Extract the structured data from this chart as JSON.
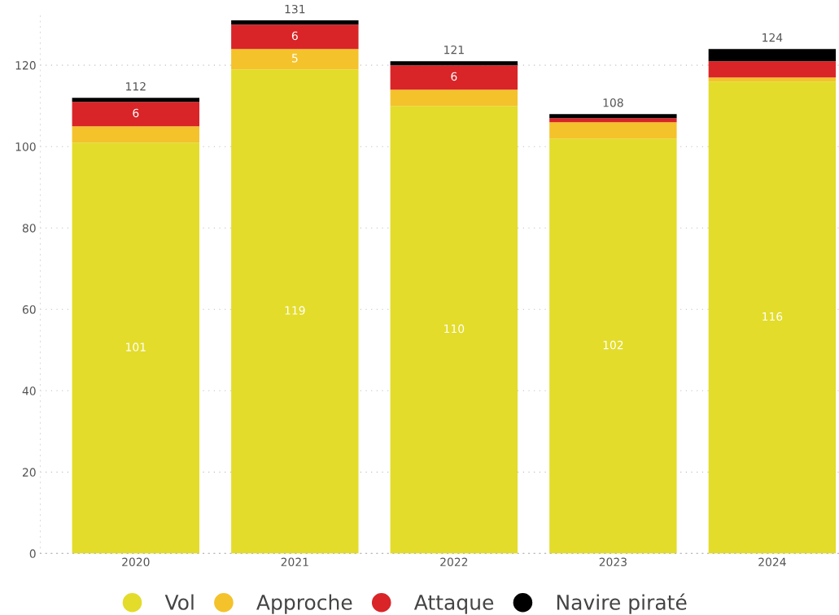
{
  "chart_data": {
    "type": "bar",
    "stacked": true,
    "categories": [
      "2020",
      "2021",
      "2022",
      "2023",
      "2024"
    ],
    "series": [
      {
        "name": "Vol",
        "color": "#e3dc2b",
        "values": [
          101,
          119,
          110,
          102,
          116
        ],
        "value_labels": [
          "101",
          "119",
          "110",
          "102",
          "116"
        ]
      },
      {
        "name": "Approche",
        "color": "#f4c22b",
        "values": [
          4,
          5,
          4,
          4,
          1
        ],
        "value_labels": [
          null,
          "5",
          null,
          null,
          null
        ]
      },
      {
        "name": "Attaque",
        "color": "#d92528",
        "values": [
          6,
          6,
          6,
          1,
          4
        ],
        "value_labels": [
          "6",
          "6",
          "6",
          null,
          null
        ]
      },
      {
        "name": "Navire piraté",
        "color": "#000000",
        "values": [
          1,
          1,
          1,
          1,
          3
        ],
        "value_labels": [
          null,
          null,
          null,
          null,
          null
        ]
      }
    ],
    "totals": [
      "112",
      "131",
      "121",
      "108",
      "124"
    ],
    "ylim": [
      0,
      133
    ],
    "yticks": [
      0,
      20,
      40,
      60,
      80,
      100,
      120
    ],
    "grid": "y",
    "legend": "bottom"
  }
}
